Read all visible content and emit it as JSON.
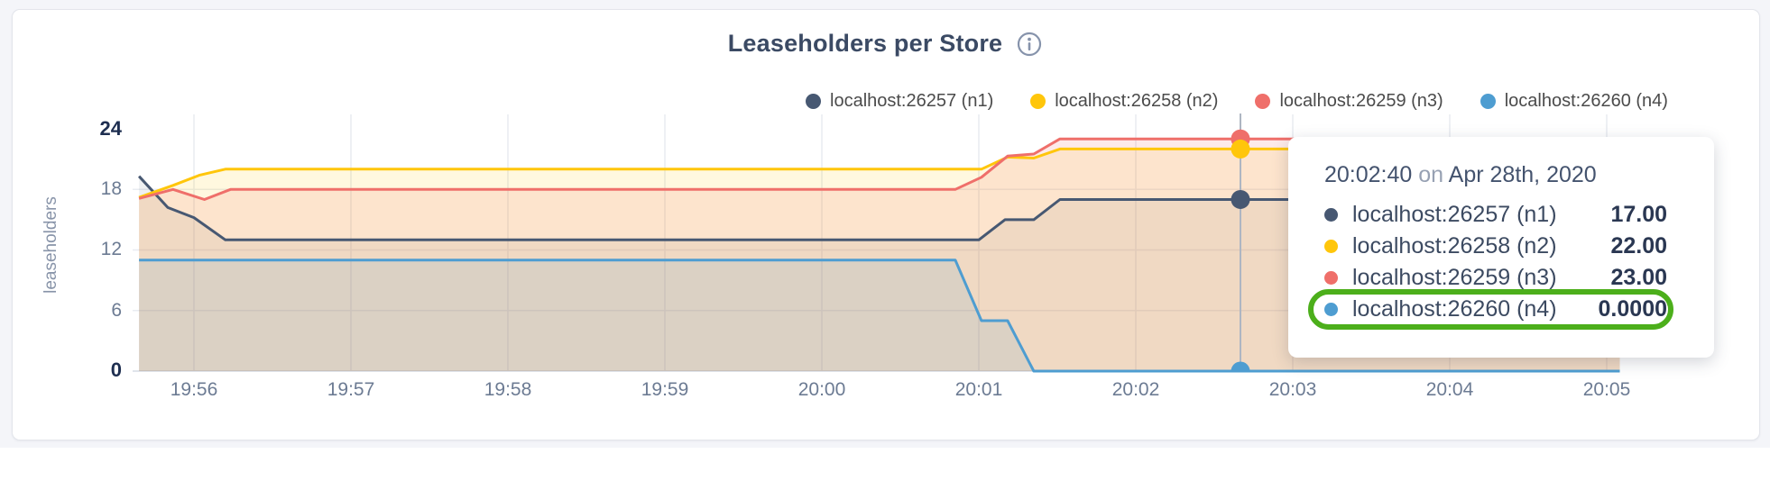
{
  "page": {
    "background": "#F4F5F9",
    "card_background": "#FFFFFF"
  },
  "header": {
    "title": "Leaseholders per Store"
  },
  "legend": {
    "items": [
      {
        "label": "localhost:26257 (n1)",
        "color": "#475872"
      },
      {
        "label": "localhost:26258 (n2)",
        "color": "#FFC60B"
      },
      {
        "label": "localhost:26259 (n3)",
        "color": "#EF6F6A"
      },
      {
        "label": "localhost:26260 (n4)",
        "color": "#4E9DD1"
      }
    ]
  },
  "y_axis": {
    "title": "leaseholders",
    "ticks": [
      "24",
      "18",
      "12",
      "6",
      "0"
    ]
  },
  "x_axis": {
    "ticks": [
      "19:56",
      "19:57",
      "19:58",
      "19:59",
      "20:00",
      "20:01",
      "20:02",
      "20:03",
      "20:04",
      "20:05"
    ]
  },
  "chart_data": {
    "type": "area",
    "title": "Leaseholders per Store",
    "ylabel": "leaseholders",
    "ylim": [
      0,
      24
    ],
    "y_ticks": [
      0,
      6,
      12,
      18,
      24
    ],
    "x_ticks": [
      "19:56",
      "19:57",
      "19:58",
      "19:59",
      "20:00",
      "20:01",
      "20:02",
      "20:03",
      "20:04",
      "20:05"
    ],
    "x_domain": [
      "19:55:39",
      "20:05:05"
    ],
    "grid": true,
    "legend_position": "top-right",
    "series": [
      {
        "name": "localhost:26257 (n1)",
        "color": "#475872",
        "points": [
          [
            "19:55:39",
            19.3
          ],
          [
            "19:55:50",
            16.2
          ],
          [
            "19:56:00",
            15.2
          ],
          [
            "19:56:12",
            13
          ],
          [
            "20:01:00",
            13
          ],
          [
            "20:01:10",
            15
          ],
          [
            "20:01:21",
            15
          ],
          [
            "20:01:31",
            17
          ],
          [
            "20:05:05",
            17
          ]
        ]
      },
      {
        "name": "localhost:26258 (n2)",
        "color": "#FFC60B",
        "points": [
          [
            "19:55:39",
            17.2
          ],
          [
            "19:55:52",
            18.4
          ],
          [
            "19:56:02",
            19.4
          ],
          [
            "19:56:12",
            20
          ],
          [
            "20:01:01",
            20
          ],
          [
            "20:01:11",
            21.2
          ],
          [
            "20:01:21",
            21.1
          ],
          [
            "20:01:31",
            22
          ],
          [
            "20:05:05",
            22
          ]
        ]
      },
      {
        "name": "localhost:26259 (n3)",
        "color": "#EF6F6A",
        "points": [
          [
            "19:55:39",
            17.1
          ],
          [
            "19:55:52",
            18
          ],
          [
            "19:56:04",
            17
          ],
          [
            "19:56:14",
            18
          ],
          [
            "20:00:51",
            18
          ],
          [
            "20:01:01",
            19.2
          ],
          [
            "20:01:11",
            21.3
          ],
          [
            "20:01:21",
            21.5
          ],
          [
            "20:01:31",
            23
          ],
          [
            "20:05:05",
            23
          ]
        ]
      },
      {
        "name": "localhost:26260 (n4)",
        "color": "#4E9DD1",
        "points": [
          [
            "19:55:39",
            11
          ],
          [
            "20:00:51",
            11
          ],
          [
            "20:01:01",
            5
          ],
          [
            "20:01:11",
            5
          ],
          [
            "20:01:21",
            0
          ],
          [
            "20:05:05",
            0
          ]
        ]
      }
    ],
    "hover": {
      "time": "20:02:40",
      "values": [
        17,
        22,
        23,
        0
      ]
    }
  },
  "tooltip": {
    "time": "20:02:40",
    "on_word": "on",
    "date": "Apr 28th, 2020",
    "annotation_color": "#4CAF1B",
    "rows": [
      {
        "label": "localhost:26257 (n1)",
        "value": "17.00",
        "color": "#475872",
        "highlighted": false
      },
      {
        "label": "localhost:26258 (n2)",
        "value": "22.00",
        "color": "#FFC60B",
        "highlighted": false
      },
      {
        "label": "localhost:26259 (n3)",
        "value": "23.00",
        "color": "#EF6F6A",
        "highlighted": false
      },
      {
        "label": "localhost:26260 (n4)",
        "value": "0.0000",
        "color": "#4E9DD1",
        "highlighted": true
      }
    ]
  }
}
